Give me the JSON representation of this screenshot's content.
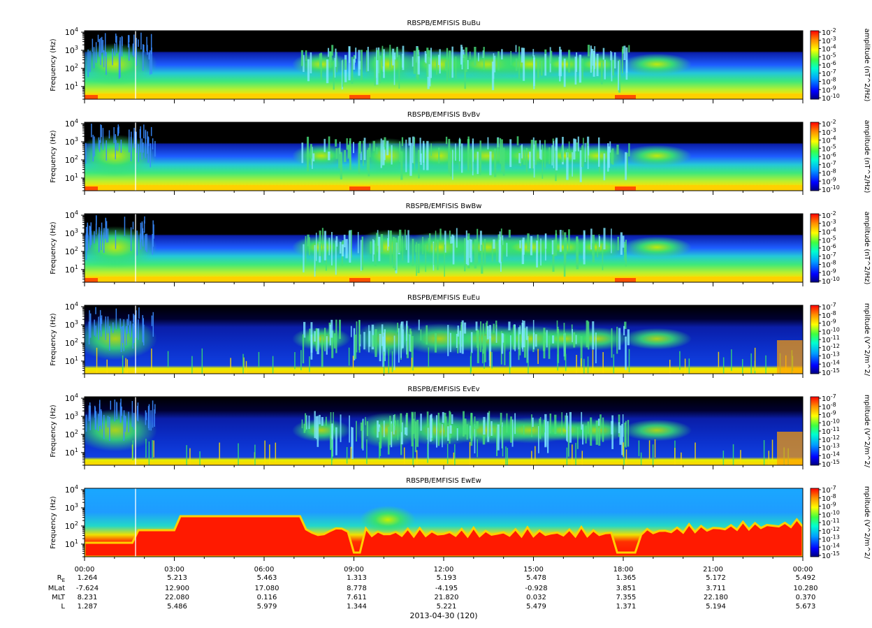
{
  "chart_data": [
    {
      "type": "heatmap",
      "title": "RBSPB/EMFISIS  BuBu",
      "ylabel": "Frequency (Hz)",
      "yscale": "log",
      "ylim": [
        2,
        12000
      ],
      "yticks": [
        {
          "base": "10",
          "exp": "1"
        },
        {
          "base": "10",
          "exp": "2"
        },
        {
          "base": "10",
          "exp": "3"
        },
        {
          "base": "10",
          "exp": "4"
        }
      ],
      "colorbar": {
        "label": "amplitude (nT^2/Hz)",
        "ticks": [
          "-2",
          "-3",
          "-4",
          "-5",
          "-6",
          "-7",
          "-8",
          "-9",
          "-10"
        ]
      },
      "colors": {
        "background": "#000000",
        "floor": "#0a1ea8",
        "mid": "#2a7bff",
        "high": "#48e07a"
      },
      "features": {
        "low_freq_band": "yellow-red",
        "chorus_bursts": true
      }
    },
    {
      "type": "heatmap",
      "title": "RBSPB/EMFISIS  BvBv",
      "ylabel": "Frequency (Hz)",
      "yscale": "log",
      "ylim": [
        2,
        12000
      ],
      "yticks": [
        {
          "base": "10",
          "exp": "1"
        },
        {
          "base": "10",
          "exp": "2"
        },
        {
          "base": "10",
          "exp": "3"
        },
        {
          "base": "10",
          "exp": "4"
        }
      ],
      "colorbar": {
        "label": "amplitude (nT^2/Hz)",
        "ticks": [
          "-2",
          "-3",
          "-4",
          "-5",
          "-6",
          "-7",
          "-8",
          "-9",
          "-10"
        ]
      },
      "colors": {
        "background": "#000000",
        "floor": "#0a1ea8",
        "mid": "#2a7bff",
        "high": "#48e07a"
      },
      "features": {
        "low_freq_band": "yellow-red",
        "chorus_bursts": true
      }
    },
    {
      "type": "heatmap",
      "title": "RBSPB/EMFISIS  BwBw",
      "ylabel": "Frequency (Hz)",
      "yscale": "log",
      "ylim": [
        2,
        12000
      ],
      "yticks": [
        {
          "base": "10",
          "exp": "1"
        },
        {
          "base": "10",
          "exp": "2"
        },
        {
          "base": "10",
          "exp": "3"
        },
        {
          "base": "10",
          "exp": "4"
        }
      ],
      "colorbar": {
        "label": "amplitude (nT^2/Hz)",
        "ticks": [
          "-2",
          "-3",
          "-4",
          "-5",
          "-6",
          "-7",
          "-8",
          "-9",
          "-10"
        ]
      },
      "colors": {
        "background": "#000000",
        "floor": "#0a1ea8",
        "mid": "#2a7bff",
        "high": "#48e07a"
      },
      "features": {
        "low_freq_band": "yellow",
        "chorus_bursts": true
      }
    },
    {
      "type": "heatmap",
      "title": "RBSPB/EMFISIS  EuEu",
      "ylabel": "Frequency (Hz)",
      "yscale": "log",
      "ylim": [
        2,
        12000
      ],
      "yticks": [
        {
          "base": "10",
          "exp": "1"
        },
        {
          "base": "10",
          "exp": "2"
        },
        {
          "base": "10",
          "exp": "3"
        },
        {
          "base": "10",
          "exp": "4"
        }
      ],
      "colorbar": {
        "label": "mplitude (V^2/m^2/",
        "ticks": [
          "-7",
          "-8",
          "-9",
          "-10",
          "-11",
          "-12",
          "-13",
          "-14",
          "-15"
        ]
      },
      "colors": {
        "background": "#000000",
        "floor": "#0a1ea8",
        "mid": "#2a7bff",
        "high": "#48e07a"
      },
      "features": {
        "low_freq_band": "yellow",
        "chorus_bursts": true
      }
    },
    {
      "type": "heatmap",
      "title": "RBSPB/EMFISIS  EvEv",
      "ylabel": "Frequency (Hz)",
      "yscale": "log",
      "ylim": [
        2,
        12000
      ],
      "yticks": [
        {
          "base": "10",
          "exp": "1"
        },
        {
          "base": "10",
          "exp": "2"
        },
        {
          "base": "10",
          "exp": "3"
        },
        {
          "base": "10",
          "exp": "4"
        }
      ],
      "colorbar": {
        "label": "mplitude (V^2/m^2/",
        "ticks": [
          "-7",
          "-8",
          "-9",
          "-10",
          "-11",
          "-12",
          "-13",
          "-14",
          "-15"
        ]
      },
      "colors": {
        "background": "#000000",
        "floor": "#0a1ea8",
        "mid": "#2a7bff",
        "high": "#48e07a"
      },
      "features": {
        "low_freq_band": "yellow",
        "chorus_bursts": true
      }
    },
    {
      "type": "heatmap",
      "title": "RBSPB/EMFISIS  EwEw",
      "ylabel": "Frequency (Hz)",
      "yscale": "log",
      "ylim": [
        2,
        12000
      ],
      "yticks": [
        {
          "base": "10",
          "exp": "1"
        },
        {
          "base": "10",
          "exp": "2"
        },
        {
          "base": "10",
          "exp": "3"
        },
        {
          "base": "10",
          "exp": "4"
        }
      ],
      "colorbar": {
        "label": "mplitude (V^2/m^2/",
        "ticks": [
          "-7",
          "-8",
          "-9",
          "-10",
          "-11",
          "-12",
          "-13",
          "-14",
          "-15"
        ]
      },
      "colors": {
        "background": "#00aaff",
        "floor": "#ff1a00",
        "mid": "#2a7bff",
        "high": "#48e07a"
      },
      "features": {
        "low_freq_band": "red-dominant",
        "chorus_bursts": false
      }
    }
  ],
  "x_axis": {
    "ticks": [
      "00:00",
      "03:00",
      "06:00",
      "09:00",
      "12:00",
      "15:00",
      "18:00",
      "21:00",
      "00:00"
    ],
    "date_label": "2013-04-30 (120)"
  },
  "ephemeris": {
    "labels": [
      "R",
      "MLat",
      "MLT",
      "L"
    ],
    "re_subscript": "E",
    "rows": [
      [
        "1.264",
        "5.213",
        "5.463",
        "1.313",
        "5.193",
        "5.478",
        "1.365",
        "5.172",
        "5.492"
      ],
      [
        "-7.624",
        "12.900",
        "17.080",
        "8.778",
        "-4.195",
        "-0.928",
        "3.851",
        "3.711",
        "10.280"
      ],
      [
        "8.231",
        "22.080",
        "0.116",
        "7.611",
        "21.820",
        "0.032",
        "7.355",
        "22.180",
        "0.370"
      ],
      [
        "1.287",
        "5.486",
        "5.979",
        "1.344",
        "5.221",
        "5.479",
        "1.371",
        "5.194",
        "5.673"
      ]
    ]
  },
  "colorbar_base": "10"
}
